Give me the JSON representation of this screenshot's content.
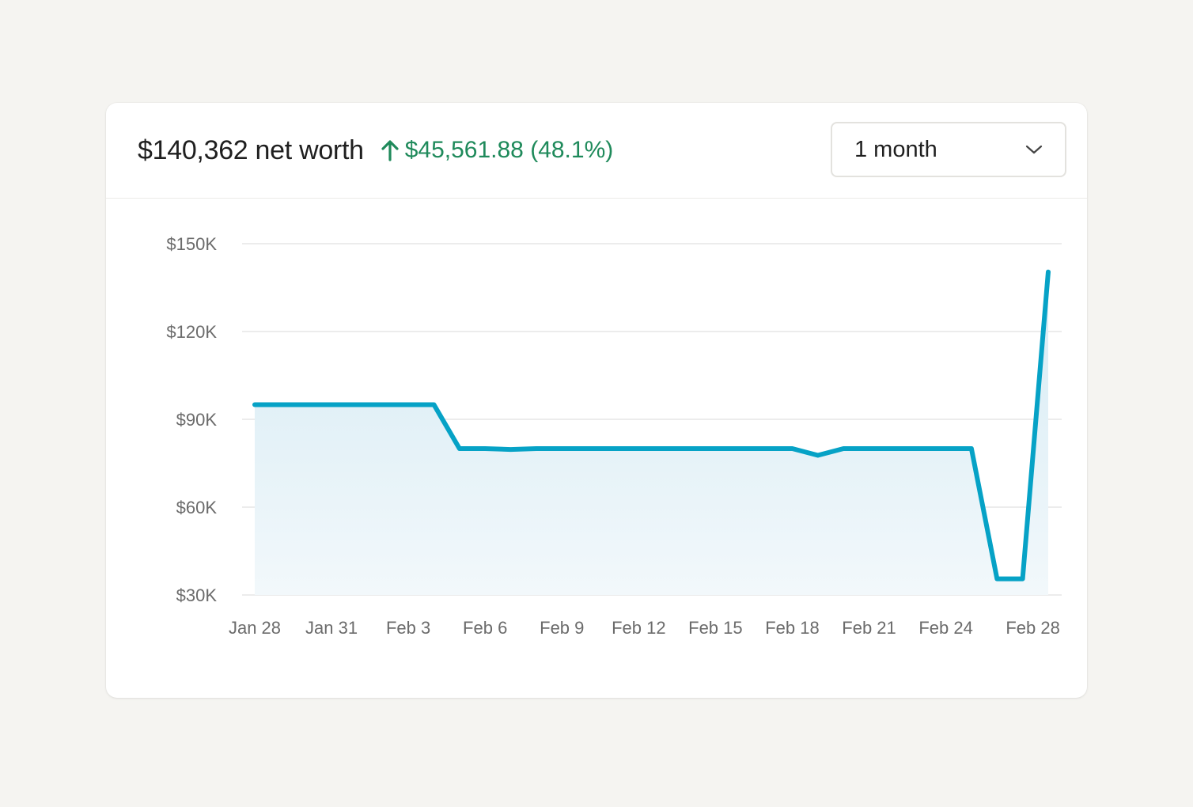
{
  "header": {
    "net_worth_label": "$140,362 net worth",
    "change_label": "$45,561.88 (48.1%)",
    "change_icon": "arrow-up-icon",
    "change_color": "#1f8a5b"
  },
  "range_select": {
    "selected": "1 month",
    "icon": "chevron-down-icon"
  },
  "colors": {
    "line": "#06a2c6",
    "fill_top": "#d6ebf4",
    "fill_bottom": "#f2f8fb",
    "grid": "#e6e6e6"
  },
  "chart_data": {
    "type": "area",
    "title": "",
    "xlabel": "",
    "ylabel": "",
    "ylim": [
      30000,
      150000
    ],
    "yticks": [
      150000,
      120000,
      90000,
      60000,
      30000
    ],
    "ytick_labels": [
      "$150K",
      "$120K",
      "$90K",
      "$60K",
      "$30K"
    ],
    "xlim": [
      0,
      31
    ],
    "xticks": [
      0,
      3,
      6,
      9,
      12,
      15,
      18,
      21,
      24,
      27,
      30.4
    ],
    "xtick_labels": [
      "Jan 28",
      "Jan 31",
      "Feb 3",
      "Feb 6",
      "Feb 9",
      "Feb 12",
      "Feb 15",
      "Feb 18",
      "Feb 21",
      "Feb 24",
      "Feb 28"
    ],
    "series": [
      {
        "name": "Net worth",
        "x": [
          0,
          1,
          2,
          3,
          4,
          5,
          6,
          7,
          8,
          9,
          10,
          11,
          12,
          13,
          14,
          15,
          16,
          17,
          18,
          19,
          20,
          21,
          22,
          23,
          24,
          25,
          26,
          27,
          28,
          29,
          30,
          31
        ],
        "values": [
          95000,
          95000,
          95000,
          95000,
          95000,
          95000,
          95000,
          95000,
          80000,
          80000,
          79700,
          80000,
          80000,
          80000,
          80000,
          80000,
          80000,
          80000,
          80000,
          80000,
          80000,
          80000,
          77700,
          80000,
          80000,
          80000,
          80000,
          80000,
          80000,
          35500,
          35500,
          140362
        ]
      }
    ]
  }
}
